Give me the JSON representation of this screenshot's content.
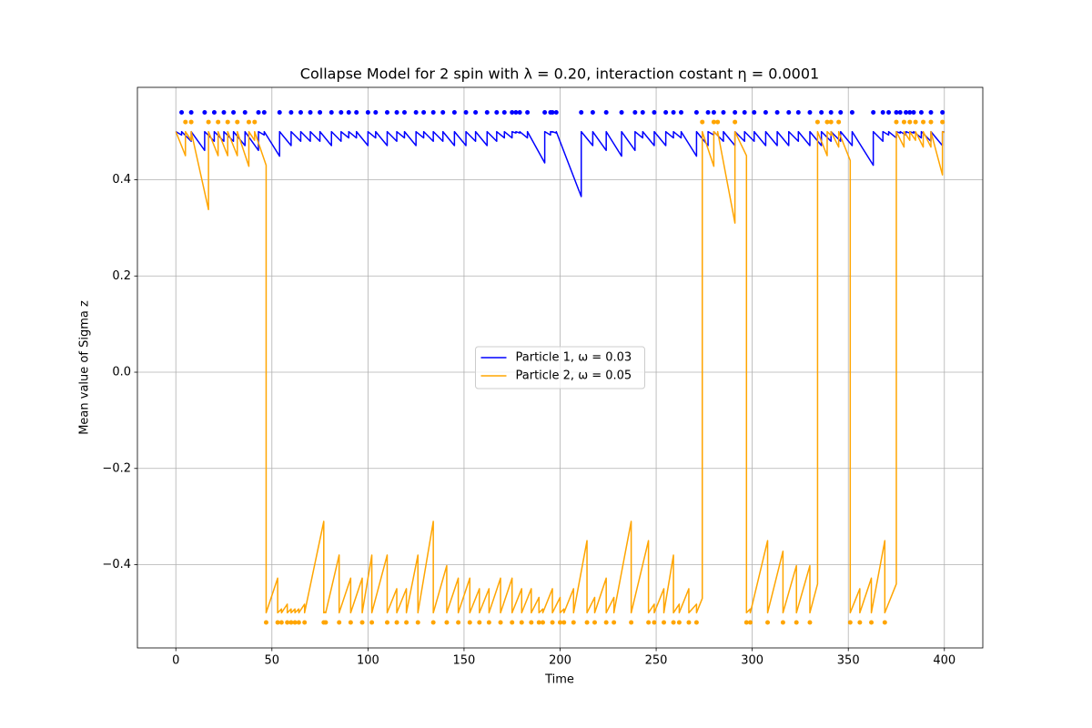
{
  "chart_data": {
    "type": "line",
    "title": "Collapse Model for 2 spin with λ = 0.20, interaction costant η = 0.0001",
    "xlabel": "Time",
    "ylabel": "Mean value of Sigma z",
    "xlim": [
      -20,
      420
    ],
    "ylim": [
      -0.573,
      0.592
    ],
    "xticks": [
      0,
      50,
      100,
      150,
      200,
      250,
      300,
      350,
      400
    ],
    "yticks": [
      {
        "value": -0.4,
        "label": "−0.4"
      },
      {
        "value": -0.2,
        "label": "−0.2"
      },
      {
        "value": 0,
        "label": "0.0"
      },
      0.2,
      0.4
    ],
    "grid": true,
    "legend": "center",
    "series": [
      {
        "name": "Particle 1, ω = 0.03",
        "color": "#0000ff",
        "x": [
          0,
          3,
          3,
          8,
          8,
          15,
          15,
          20,
          20,
          25,
          25,
          30,
          30,
          36,
          36,
          43,
          43,
          46,
          46,
          54,
          54,
          60,
          60,
          65,
          65,
          70,
          70,
          75,
          75,
          81,
          81,
          86,
          86,
          90,
          90,
          94,
          94,
          100,
          100,
          104,
          104,
          110,
          110,
          115,
          115,
          119,
          119,
          125,
          125,
          129,
          129,
          134,
          134,
          139,
          139,
          145,
          145,
          151,
          151,
          156,
          156,
          162,
          162,
          167,
          167,
          171,
          171,
          175,
          175,
          177,
          177,
          179,
          179,
          183,
          183,
          192,
          192,
          195,
          195,
          196,
          196,
          198,
          198,
          211,
          211,
          217,
          217,
          224,
          224,
          232,
          232,
          239,
          239,
          243,
          243,
          249,
          249,
          255,
          255,
          259,
          259,
          263,
          263,
          271,
          271,
          277,
          277,
          280,
          280,
          285,
          285,
          291,
          291,
          296,
          296,
          301,
          301,
          307,
          307,
          313,
          313,
          319,
          319,
          324,
          324,
          330,
          330,
          336,
          336,
          341,
          341,
          346,
          346,
          352,
          352,
          363,
          363,
          368,
          368,
          371,
          371,
          375,
          375,
          377,
          377,
          380,
          380,
          382,
          382,
          384,
          384,
          388,
          388,
          393,
          393,
          399,
          399,
          400
        ],
        "values": [
          0.5,
          0.493,
          0.5,
          0.48,
          0.5,
          0.461,
          0.5,
          0.48,
          0.5,
          0.48,
          0.5,
          0.48,
          0.5,
          0.471,
          0.5,
          0.461,
          0.5,
          0.493,
          0.5,
          0.449,
          0.5,
          0.471,
          0.5,
          0.48,
          0.5,
          0.48,
          0.5,
          0.48,
          0.5,
          0.471,
          0.5,
          0.48,
          0.5,
          0.487,
          0.5,
          0.487,
          0.5,
          0.471,
          0.5,
          0.487,
          0.5,
          0.471,
          0.5,
          0.48,
          0.5,
          0.487,
          0.5,
          0.471,
          0.5,
          0.487,
          0.5,
          0.48,
          0.5,
          0.48,
          0.5,
          0.471,
          0.5,
          0.471,
          0.5,
          0.48,
          0.5,
          0.471,
          0.5,
          0.48,
          0.5,
          0.487,
          0.5,
          0.487,
          0.5,
          0.497,
          0.5,
          0.497,
          0.5,
          0.487,
          0.5,
          0.435,
          0.5,
          0.493,
          0.5,
          0.499,
          0.5,
          0.497,
          0.5,
          0.365,
          0.5,
          0.471,
          0.5,
          0.461,
          0.5,
          0.449,
          0.5,
          0.461,
          0.5,
          0.487,
          0.5,
          0.471,
          0.5,
          0.471,
          0.5,
          0.487,
          0.5,
          0.487,
          0.5,
          0.449,
          0.5,
          0.471,
          0.5,
          0.493,
          0.5,
          0.48,
          0.5,
          0.471,
          0.5,
          0.48,
          0.5,
          0.48,
          0.5,
          0.471,
          0.5,
          0.471,
          0.5,
          0.471,
          0.5,
          0.48,
          0.5,
          0.471,
          0.5,
          0.471,
          0.5,
          0.48,
          0.5,
          0.48,
          0.5,
          0.471,
          0.5,
          0.43,
          0.5,
          0.48,
          0.5,
          0.493,
          0.5,
          0.487,
          0.5,
          0.497,
          0.5,
          0.493,
          0.5,
          0.497,
          0.5,
          0.497,
          0.5,
          0.487,
          0.5,
          0.48,
          0.5,
          0.471,
          0.5,
          0.499
        ]
      },
      {
        "name": "Particle 2, ω = 0.05",
        "color": "#ffa500",
        "x": [
          0,
          5,
          5,
          8,
          8,
          17,
          17,
          22,
          22,
          27,
          27,
          32,
          32,
          38,
          38,
          41,
          41,
          47,
          47,
          53,
          53,
          55,
          55,
          58,
          58,
          60,
          60,
          62,
          62,
          64,
          64,
          67,
          67,
          77,
          77,
          78,
          78,
          85,
          85,
          91,
          91,
          97,
          97,
          102,
          102,
          110,
          110,
          115,
          115,
          120,
          120,
          126,
          126,
          134,
          134,
          141,
          141,
          147,
          147,
          153,
          153,
          158,
          158,
          163,
          163,
          169,
          169,
          175,
          175,
          180,
          180,
          185,
          185,
          189,
          189,
          191,
          191,
          196,
          196,
          200,
          200,
          202,
          202,
          207,
          207,
          214,
          214,
          218,
          218,
          224,
          224,
          228,
          228,
          237,
          237,
          246,
          246,
          249,
          249,
          254,
          254,
          259,
          259,
          262,
          262,
          267,
          267,
          271,
          271,
          274,
          274,
          280,
          280,
          282,
          282,
          291,
          291,
          297,
          297,
          299,
          299,
          308,
          308,
          316,
          316,
          323,
          323,
          330,
          330,
          334,
          334,
          339,
          339,
          341,
          341,
          345,
          345,
          351,
          351,
          356,
          356,
          362,
          362,
          369,
          369,
          375,
          375,
          379,
          379,
          382,
          382,
          385,
          385,
          389,
          389,
          393,
          393,
          399,
          399,
          400
        ],
        "values": [
          0.5,
          0.45,
          0.5,
          0.482,
          0.5,
          0.338,
          0.5,
          0.45,
          0.5,
          0.45,
          0.5,
          0.45,
          0.5,
          0.428,
          0.5,
          0.482,
          0.5,
          0.43,
          -0.5,
          -0.428,
          -0.5,
          -0.492,
          -0.5,
          -0.482,
          -0.5,
          -0.492,
          -0.5,
          -0.492,
          -0.5,
          -0.492,
          -0.5,
          -0.482,
          -0.5,
          -0.31,
          -0.5,
          -0.498,
          -0.5,
          -0.38,
          -0.5,
          -0.428,
          -0.5,
          -0.428,
          -0.5,
          -0.38,
          -0.5,
          -0.38,
          -0.5,
          -0.45,
          -0.5,
          -0.45,
          -0.5,
          -0.38,
          -0.5,
          -0.31,
          -0.5,
          -0.402,
          -0.5,
          -0.428,
          -0.5,
          -0.428,
          -0.5,
          -0.45,
          -0.5,
          -0.45,
          -0.5,
          -0.428,
          -0.5,
          -0.428,
          -0.5,
          -0.45,
          -0.5,
          -0.45,
          -0.5,
          -0.468,
          -0.5,
          -0.492,
          -0.5,
          -0.45,
          -0.5,
          -0.468,
          -0.5,
          -0.492,
          -0.5,
          -0.45,
          -0.5,
          -0.35,
          -0.5,
          -0.468,
          -0.5,
          -0.428,
          -0.5,
          -0.468,
          -0.5,
          -0.31,
          -0.5,
          -0.35,
          -0.5,
          -0.482,
          -0.5,
          -0.45,
          -0.5,
          -0.38,
          -0.5,
          -0.482,
          -0.5,
          -0.45,
          -0.5,
          -0.482,
          -0.5,
          -0.47,
          0.5,
          0.428,
          0.5,
          0.492,
          0.5,
          0.31,
          0.5,
          0.45,
          -0.5,
          -0.492,
          -0.5,
          -0.35,
          -0.5,
          -0.372,
          -0.5,
          -0.402,
          -0.5,
          -0.402,
          -0.5,
          -0.44,
          0.5,
          0.45,
          0.5,
          0.492,
          0.5,
          0.468,
          0.5,
          0.44,
          -0.5,
          -0.45,
          -0.5,
          -0.428,
          -0.5,
          -0.35,
          -0.5,
          -0.44,
          0.5,
          0.468,
          0.5,
          0.482,
          0.5,
          0.482,
          0.5,
          0.468,
          0.5,
          0.468,
          0.5,
          0.41,
          0.5,
          0.498
        ]
      }
    ],
    "markers": [
      {
        "color": "#0000ff",
        "y": 0.54,
        "x": [
          3,
          8,
          15,
          20,
          25,
          30,
          36,
          43,
          46,
          54,
          60,
          65,
          70,
          75,
          81,
          86,
          90,
          94,
          100,
          104,
          110,
          115,
          119,
          125,
          129,
          134,
          139,
          145,
          151,
          156,
          162,
          167,
          171,
          175,
          177,
          179,
          183,
          192,
          195,
          196,
          198,
          211,
          217,
          224,
          232,
          239,
          243,
          249,
          255,
          259,
          263,
          271,
          277,
          280,
          285,
          291,
          296,
          301,
          307,
          313,
          319,
          324,
          330,
          336,
          341,
          346,
          352,
          363,
          368,
          371,
          375,
          377,
          380,
          382,
          384,
          388,
          393,
          399
        ]
      },
      {
        "color": "#ffa500",
        "y": 0.52,
        "x": [
          5,
          8,
          17,
          22,
          27,
          32,
          38,
          41,
          274,
          280,
          282,
          291,
          334,
          339,
          341,
          345,
          375,
          379,
          382,
          385,
          389,
          393,
          399
        ]
      },
      {
        "color": "#ffa500",
        "y": -0.52,
        "x": [
          47,
          53,
          55,
          58,
          60,
          62,
          64,
          67,
          77,
          78,
          85,
          91,
          97,
          102,
          110,
          115,
          120,
          126,
          134,
          141,
          147,
          153,
          158,
          163,
          169,
          175,
          180,
          185,
          189,
          191,
          196,
          200,
          202,
          207,
          214,
          218,
          224,
          228,
          237,
          246,
          249,
          254,
          259,
          262,
          267,
          271,
          297,
          299,
          308,
          316,
          323,
          330,
          351,
          356,
          362,
          369
        ]
      }
    ]
  }
}
